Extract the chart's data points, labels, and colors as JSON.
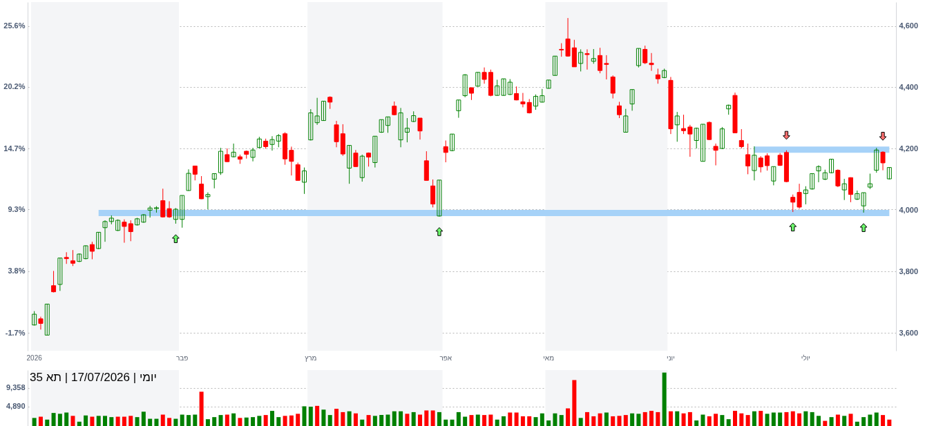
{
  "chart_data": [
    {
      "type": "candlestick",
      "categories": [
        "2026",
        null,
        null,
        null,
        null,
        null,
        null,
        null,
        null,
        null,
        null,
        null,
        null,
        null,
        null,
        null,
        null,
        null,
        null,
        null,
        null,
        null,
        null,
        "פבר",
        null,
        null,
        null,
        null,
        null,
        null,
        null,
        null,
        null,
        null,
        null,
        null,
        null,
        null,
        null,
        null,
        null,
        null,
        null,
        "מרץ",
        null,
        null,
        null,
        null,
        null,
        null,
        null,
        null,
        null,
        null,
        null,
        null,
        null,
        null,
        null,
        null,
        null,
        null,
        null,
        null,
        "אפר",
        null,
        null,
        null,
        null,
        null,
        null,
        null,
        null,
        null,
        null,
        null,
        null,
        null,
        null,
        null,
        "מאי",
        null,
        null,
        null,
        null,
        null,
        null,
        null,
        null,
        null,
        null,
        null,
        null,
        null,
        null,
        null,
        null,
        null,
        null,
        "יוני",
        null,
        null,
        null,
        null,
        null,
        null,
        null,
        null,
        null,
        null,
        null,
        null,
        null,
        null,
        null,
        null,
        null,
        null,
        null,
        null,
        "יולי",
        null,
        null,
        null,
        null,
        null,
        null,
        null,
        null,
        null,
        null,
        null,
        null,
        null
      ],
      "ylim": [
        -3.29,
        27.74
      ],
      "yticks": [
        {
          "value": -1.7,
          "label": "-1.7%"
        },
        {
          "value": 3.8,
          "label": "3.8%"
        },
        {
          "value": 9.3,
          "label": "9.3%"
        },
        {
          "value": 14.7,
          "label": "14.7%"
        },
        {
          "value": 20.2,
          "label": "20.2%"
        },
        {
          "value": 25.6,
          "label": "25.6%"
        }
      ],
      "y2lim": [
        3542,
        4678
      ],
      "y2ticks": [
        {
          "value": 3600,
          "label": "3,600"
        },
        {
          "value": 3800,
          "label": "3,800"
        },
        {
          "value": 4000,
          "label": "4,000"
        },
        {
          "value": 4200,
          "label": "4,200"
        },
        {
          "value": 4400,
          "label": "4,400"
        },
        {
          "value": 4600,
          "label": "4,600"
        }
      ],
      "grid": "y",
      "bands": [
        {
          "axis": "x",
          "from": "2026",
          "to": "פבר",
          "color": "#f4f5f7"
        },
        {
          "axis": "x",
          "from": "מרץ",
          "to": "אפר",
          "color": "#f4f5f7"
        },
        {
          "axis": "x",
          "from": "מאי",
          "to": "יוני",
          "color": "#f4f5f7"
        }
      ],
      "series": [
        {
          "type": "line",
          "axis": "y2",
          "color": "#a6d2f8",
          "values": [
            null,
            null,
            null,
            null,
            null,
            null,
            null,
            null,
            null,
            null,
            3991,
            3991,
            3991,
            3991,
            3991,
            3991,
            3991,
            3991,
            3991,
            3991,
            3991,
            3991,
            3991,
            3991,
            3991,
            3991,
            3991,
            3991,
            3991,
            3991,
            3991,
            3991,
            3991,
            3991,
            3991,
            3991,
            3991,
            3991,
            3991,
            3991,
            3991,
            3991,
            3991,
            3991,
            3991,
            3991,
            3991,
            3991,
            3991,
            3991,
            3991,
            3991,
            3991,
            3991,
            3991,
            3991,
            3991,
            3991,
            3991,
            3991,
            3991,
            3991,
            3991,
            3991,
            3991,
            3991,
            3991,
            3991,
            3991,
            3991,
            3991,
            3991,
            3991,
            3991,
            3991,
            3991,
            3991,
            3991,
            3991,
            3991,
            3991,
            3991,
            3991,
            3991,
            3991,
            3991,
            3991,
            3991,
            3991,
            3991,
            3991,
            3991,
            3991,
            3991,
            3991,
            3991,
            3991,
            3991,
            3991,
            3991,
            3991,
            3991,
            3991,
            3991,
            3991,
            3991,
            3991,
            3991,
            3991,
            3991,
            3991,
            3991,
            3991,
            3991,
            3991,
            3991,
            3991,
            3991,
            3991,
            3991,
            3991,
            3991,
            3991,
            3991,
            3991,
            3991,
            3991,
            3991,
            3991,
            3991,
            3991,
            3991,
            3991,
            3991
          ]
        },
        {
          "type": "line",
          "axis": "y2",
          "color": "#a6d2f8",
          "values": [
            null,
            null,
            null,
            null,
            null,
            null,
            null,
            null,
            null,
            null,
            null,
            null,
            null,
            null,
            null,
            null,
            null,
            null,
            null,
            null,
            null,
            null,
            null,
            null,
            null,
            null,
            null,
            null,
            null,
            null,
            null,
            null,
            null,
            null,
            null,
            null,
            null,
            null,
            null,
            null,
            null,
            null,
            null,
            null,
            null,
            null,
            null,
            null,
            null,
            null,
            null,
            null,
            null,
            null,
            null,
            null,
            null,
            null,
            null,
            null,
            null,
            null,
            null,
            null,
            null,
            null,
            null,
            null,
            null,
            null,
            null,
            null,
            null,
            null,
            null,
            null,
            null,
            null,
            null,
            null,
            null,
            null,
            null,
            null,
            null,
            null,
            null,
            null,
            null,
            null,
            null,
            null,
            null,
            null,
            null,
            null,
            null,
            null,
            null,
            null,
            null,
            null,
            null,
            null,
            null,
            null,
            null,
            null,
            null,
            null,
            null,
            null,
            4197,
            4197,
            4197,
            4197,
            4197,
            4197,
            4197,
            4197,
            4197,
            4197,
            4197,
            4197,
            4197,
            4197,
            4197,
            4197,
            4197,
            4197,
            4197,
            4197,
            4197,
            4197
          ]
        },
        {
          "type": "candlestick",
          "axis": "y2",
          "ohlc": [
            [
              3626,
              3671,
              3624,
              3661
            ],
            [
              3646,
              3653,
              3611,
              3631
            ],
            [
              3593,
              3694,
              3593,
              3694
            ],
            [
              3754,
              3802,
              3732,
              3734
            ],
            [
              3758,
              3844,
              3737,
              3844
            ],
            [
              3846,
              3863,
              3825,
              3842
            ],
            [
              3835,
              3870,
              3818,
              3827
            ],
            [
              3833,
              3859,
              3831,
              3857
            ],
            [
              3842,
              3885,
              3840,
              3884
            ],
            [
              3888,
              3897,
              3840,
              3866
            ],
            [
              3875,
              3928,
              3873,
              3928
            ],
            [
              3943,
              3967,
              3897,
              3963
            ],
            [
              3963,
              3983,
              3954,
              3974
            ],
            [
              3934,
              3970,
              3932,
              3967
            ],
            [
              3961,
              3970,
              3894,
              3947
            ],
            [
              3956,
              3967,
              3899,
              3930
            ],
            [
              3952,
              3975,
              3950,
              3972
            ],
            [
              3961,
              3987,
              3959,
              3985
            ],
            [
              4000,
              4014,
              3976,
              4007
            ],
            [
              4005,
              4013,
              3992,
              4008
            ],
            [
              4031,
              4070,
              3976,
              3978
            ],
            [
              4005,
              4029,
              3975,
              3978
            ],
            [
              3970,
              4007,
              3956,
              4003
            ],
            [
              3970,
              4048,
              3943,
              4048
            ],
            [
              4064,
              4133,
              4063,
              4120
            ],
            [
              4144,
              4144,
              4097,
              4117
            ],
            [
              4085,
              4111,
              4036,
              4037
            ],
            [
              4044,
              4058,
              4003,
              4051
            ],
            [
              4101,
              4119,
              4071,
              4119
            ],
            [
              4122,
              4203,
              4115,
              4192
            ],
            [
              4181,
              4201,
              4157,
              4158
            ],
            [
              4174,
              4217,
              4172,
              4189
            ],
            [
              4174,
              4181,
              4151,
              4166
            ],
            [
              4192,
              4194,
              4168,
              4182
            ],
            [
              4172,
              4203,
              4159,
              4196
            ],
            [
              4204,
              4239,
              4201,
              4232
            ],
            [
              4225,
              4233,
              4200,
              4207
            ],
            [
              4214,
              4241,
              4194,
              4230
            ],
            [
              4225,
              4248,
              4205,
              4243
            ],
            [
              4249,
              4254,
              4148,
              4167
            ],
            [
              4195,
              4207,
              4113,
              4159
            ],
            [
              4148,
              4155,
              4097,
              4097
            ],
            [
              4091,
              4139,
              4053,
              4128
            ],
            [
              4229,
              4329,
              4227,
              4317
            ],
            [
              4285,
              4366,
              4278,
              4307
            ],
            [
              4292,
              4355,
              4291,
              4355
            ],
            [
              4368,
              4371,
              4330,
              4352
            ],
            [
              4278,
              4291,
              4205,
              4223
            ],
            [
              4249,
              4280,
              4177,
              4183
            ],
            [
              4137,
              4212,
              4086,
              4211
            ],
            [
              4186,
              4196,
              4141,
              4142
            ],
            [
              4106,
              4181,
              4093,
              4176
            ],
            [
              4186,
              4188,
              4142,
              4173
            ],
            [
              4155,
              4241,
              4139,
              4241
            ],
            [
              4254,
              4295,
              4252,
              4295
            ],
            [
              4276,
              4304,
              4252,
              4304
            ],
            [
              4339,
              4354,
              4309,
              4311
            ],
            [
              4229,
              4333,
              4205,
              4317
            ],
            [
              4254,
              4300,
              4221,
              4267
            ],
            [
              4289,
              4322,
              4287,
              4308
            ],
            [
              4300,
              4300,
              4230,
              4258
            ],
            [
              4161,
              4192,
              4097,
              4097
            ],
            [
              4079,
              4100,
              4009,
              4020
            ],
            [
              3981,
              4098,
              3979,
              4098
            ],
            [
              4207,
              4227,
              4156,
              4188
            ],
            [
              4194,
              4248,
              4192,
              4248
            ],
            [
              4324,
              4359,
              4301,
              4359
            ],
            [
              4373,
              4443,
              4368,
              4441
            ],
            [
              4399,
              4399,
              4359,
              4381
            ],
            [
              4404,
              4449,
              4402,
              4449
            ],
            [
              4449,
              4465,
              4412,
              4426
            ],
            [
              4449,
              4458,
              4371,
              4374
            ],
            [
              4374,
              4425,
              4373,
              4405
            ],
            [
              4374,
              4428,
              4373,
              4428
            ],
            [
              4377,
              4427,
              4375,
              4417
            ],
            [
              4380,
              4403,
              4358,
              4359
            ],
            [
              4353,
              4382,
              4335,
              4346
            ],
            [
              4351,
              4362,
              4315,
              4317
            ],
            [
              4339,
              4377,
              4327,
              4371
            ],
            [
              4352,
              4395,
              4351,
              4373
            ],
            [
              4397,
              4424,
              4396,
              4424
            ],
            [
              4439,
              4502,
              4439,
              4502
            ],
            [
              4524,
              4544,
              4500,
              4522
            ],
            [
              4558,
              4626,
              4500,
              4502
            ],
            [
              4529,
              4555,
              4467,
              4467
            ],
            [
              4478,
              4524,
              4452,
              4514
            ],
            [
              4510,
              4524,
              4458,
              4507
            ],
            [
              4485,
              4525,
              4477,
              4494
            ],
            [
              4504,
              4529,
              4446,
              4455
            ],
            [
              4478,
              4505,
              4426,
              4475
            ],
            [
              4434,
              4439,
              4364,
              4381
            ],
            [
              4340,
              4353,
              4300,
              4311
            ],
            [
              4254,
              4330,
              4254,
              4307
            ],
            [
              4346,
              4393,
              4324,
              4393
            ],
            [
              4471,
              4527,
              4465,
              4527
            ],
            [
              4524,
              4536,
              4476,
              4480
            ],
            [
              4479,
              4512,
              4454,
              4474
            ],
            [
              4441,
              4461,
              4412,
              4428
            ],
            [
              4432,
              4461,
              4430,
              4455
            ],
            [
              4423,
              4434,
              4248,
              4265
            ],
            [
              4278,
              4320,
              4223,
              4307
            ],
            [
              4266,
              4311,
              4248,
              4259
            ],
            [
              4271,
              4278,
              4174,
              4248
            ],
            [
              4227,
              4269,
              4201,
              4267
            ],
            [
              4159,
              4280,
              4159,
              4280
            ],
            [
              4286,
              4289,
              4229,
              4230
            ],
            [
              4208,
              4217,
              4146,
              4195
            ],
            [
              4201,
              4271,
              4199,
              4265
            ],
            [
              4330,
              4344,
              4311,
              4342
            ],
            [
              4374,
              4383,
              4252,
              4252
            ],
            [
              4227,
              4264,
              4201,
              4207
            ],
            [
              4181,
              4217,
              4117,
              4144
            ],
            [
              4129,
              4208,
              4097,
              4179
            ],
            [
              4170,
              4176,
              4123,
              4141
            ],
            [
              4177,
              4185,
              4129,
              4145
            ],
            [
              4095,
              4142,
              4081,
              4142
            ],
            [
              4179,
              4186,
              4144,
              4146
            ],
            [
              4188,
              4195,
              4091,
              4093
            ],
            [
              4042,
              4051,
              3994,
              4026
            ],
            [
              4058,
              4086,
              4005,
              4010
            ],
            [
              4054,
              4078,
              4019,
              4066
            ],
            [
              4069,
              4119,
              4067,
              4119
            ],
            [
              4128,
              4146,
              4091,
              4142
            ],
            [
              4101,
              4132,
              4098,
              4122
            ],
            [
              4122,
              4167,
              4120,
              4166
            ],
            [
              4130,
              4133,
              4075,
              4079
            ],
            [
              4066,
              4102,
              4033,
              4086
            ],
            [
              4106,
              4107,
              4026,
              4051
            ],
            [
              4036,
              4064,
              4033,
              4054
            ],
            [
              4014,
              4057,
              3992,
              4057
            ],
            [
              4075,
              4119,
              4069,
              4086
            ],
            [
              4130,
              4203,
              4122,
              4196
            ],
            [
              4189,
              4192,
              4130,
              4154
            ],
            [
              4102,
              4139,
              4100,
              4139
            ]
          ],
          "colors": [
            "#008000",
            "#ff0000",
            "#008000",
            "#ff0000",
            "#008000",
            "#ff0000",
            "#ff0000",
            "#008000",
            "#008000",
            "#ff0000",
            "#008000",
            "#008000",
            "#008000",
            "#008000",
            "#ff0000",
            "#ff0000",
            "#008000",
            "#008000",
            "#008000",
            "#008000",
            "#ff0000",
            "#ff0000",
            "#008000",
            "#008000",
            "#008000",
            "#ff0000",
            "#ff0000",
            "#008000",
            "#008000",
            "#008000",
            "#ff0000",
            "#008000",
            "#ff0000",
            "#ff0000",
            "#008000",
            "#008000",
            "#ff0000",
            "#008000",
            "#008000",
            "#ff0000",
            "#ff0000",
            "#ff0000",
            "#008000",
            "#008000",
            "#008000",
            "#008000",
            "#ff0000",
            "#ff0000",
            "#ff0000",
            "#008000",
            "#ff0000",
            "#008000",
            "#ff0000",
            "#008000",
            "#008000",
            "#008000",
            "#ff0000",
            "#008000",
            "#008000",
            "#008000",
            "#ff0000",
            "#ff0000",
            "#ff0000",
            "#008000",
            "#ff0000",
            "#008000",
            "#008000",
            "#008000",
            "#ff0000",
            "#008000",
            "#ff0000",
            "#ff0000",
            "#008000",
            "#008000",
            "#008000",
            "#ff0000",
            "#ff0000",
            "#ff0000",
            "#008000",
            "#008000",
            "#008000",
            "#008000",
            "#ff0000",
            "#ff0000",
            "#ff0000",
            "#008000",
            "#ff0000",
            "#008000",
            "#ff0000",
            "#ff0000",
            "#ff0000",
            "#ff0000",
            "#008000",
            "#008000",
            "#008000",
            "#ff0000",
            "#ff0000",
            "#ff0000",
            "#008000",
            "#ff0000",
            "#008000",
            "#ff0000",
            "#ff0000",
            "#008000",
            "#008000",
            "#ff0000",
            "#ff0000",
            "#008000",
            "#008000",
            "#ff0000",
            "#ff0000",
            "#ff0000",
            "#008000",
            "#ff0000",
            "#ff0000",
            "#008000",
            "#ff0000",
            "#ff0000",
            "#ff0000",
            "#ff0000",
            "#008000",
            "#008000",
            "#008000",
            "#008000",
            "#008000",
            "#ff0000",
            "#008000",
            "#ff0000",
            "#008000",
            "#008000",
            "#008000",
            "#008000",
            "#ff0000",
            "#008000"
          ]
        }
      ]
    },
    {
      "type": "bar",
      "title": "יומי | 17/07/2026 | תא 35",
      "categories": [
        "2026",
        null,
        null,
        null,
        null,
        null,
        null,
        null,
        null,
        null,
        null,
        null,
        null,
        null,
        null,
        null,
        null,
        null,
        null,
        null,
        null,
        null,
        null,
        "פבר",
        null,
        null,
        null,
        null,
        null,
        null,
        null,
        null,
        null,
        null,
        null,
        null,
        null,
        null,
        null,
        null,
        null,
        null,
        null,
        "מרץ",
        null,
        null,
        null,
        null,
        null,
        null,
        null,
        null,
        null,
        null,
        null,
        null,
        null,
        null,
        null,
        null,
        null,
        null,
        null,
        null,
        "אפר",
        null,
        null,
        null,
        null,
        null,
        null,
        null,
        null,
        null,
        null,
        null,
        null,
        null,
        null,
        null,
        "מאי",
        null,
        null,
        null,
        null,
        null,
        null,
        null,
        null,
        null,
        null,
        null,
        null,
        null,
        null,
        null,
        null,
        null,
        null,
        "יוני",
        null,
        null,
        null,
        null,
        null,
        null,
        null,
        null,
        null,
        null,
        null,
        null,
        null,
        null,
        null,
        null,
        null,
        null,
        null,
        null,
        "יולי",
        null,
        null,
        null,
        null,
        null,
        null,
        null,
        null,
        null,
        null,
        null,
        null,
        null
      ],
      "tick_labels": "y",
      "ylim": [
        0,
        13600
      ],
      "yticks": [
        {
          "value": 4890,
          "label": "4,890"
        },
        {
          "value": 9358,
          "label": "9,358"
        }
      ],
      "grid": "y",
      "bands": [
        {
          "axis": "x",
          "from": "2026",
          "to": "פבר",
          "color": "#f4f5f7"
        },
        {
          "axis": "x",
          "from": "מרץ",
          "to": "אפר",
          "color": "#f4f5f7"
        },
        {
          "axis": "x",
          "from": "מאי",
          "to": "יוני",
          "color": "#f4f5f7"
        }
      ],
      "values": [
        2100,
        2400,
        1700,
        3300,
        3100,
        3400,
        2600,
        1200,
        2700,
        2400,
        2600,
        2600,
        2300,
        2400,
        2400,
        2600,
        2300,
        3600,
        1900,
        1900,
        2900,
        2100,
        1900,
        2900,
        2800,
        2900,
        8400,
        1800,
        2300,
        2800,
        2900,
        3200,
        2100,
        2200,
        2300,
        2600,
        2800,
        3800,
        2300,
        2600,
        2700,
        3100,
        4900,
        4800,
        5000,
        4100,
        2800,
        4300,
        3500,
        3700,
        3200,
        1700,
        2800,
        2600,
        2800,
        2900,
        3700,
        3700,
        3100,
        3500,
        2900,
        3900,
        3900,
        3500,
        1700,
        1700,
        3500,
        2400,
        2800,
        2900,
        2800,
        2900,
        1700,
        2500,
        3400,
        3400,
        2500,
        2500,
        2300,
        3200,
        1500,
        3200,
        2800,
        4400,
        11200,
        2100,
        3500,
        2500,
        3200,
        3400,
        2500,
        2600,
        2800,
        3200,
        3100,
        3500,
        3800,
        3500,
        13000,
        3700,
        3700,
        3200,
        3500,
        1500,
        2900,
        2500,
        3100,
        2800,
        1800,
        3800,
        3200,
        2800,
        3700,
        3800,
        3100,
        3400,
        3400,
        3500,
        3700,
        3200,
        3700,
        3500,
        2600,
        1400,
        2300,
        2900,
        2600,
        3100,
        1200,
        2300,
        2900,
        3400,
        2800,
        1700
      ],
      "colors": [
        "#008000",
        "#ff0000",
        "#008000",
        "#008000",
        "#008000",
        "#008000",
        "#ff0000",
        "#008000",
        "#008000",
        "#ff0000",
        "#008000",
        "#008000",
        "#008000",
        "#ff0000",
        "#ff0000",
        "#ff0000",
        "#008000",
        "#008000",
        "#008000",
        "#008000",
        "#ff0000",
        "#ff0000",
        "#008000",
        "#008000",
        "#008000",
        "#008000",
        "#ff0000",
        "#008000",
        "#008000",
        "#008000",
        "#ff0000",
        "#008000",
        "#ff0000",
        "#008000",
        "#008000",
        "#008000",
        "#ff0000",
        "#008000",
        "#008000",
        "#ff0000",
        "#ff0000",
        "#ff0000",
        "#008000",
        "#008000",
        "#ff0000",
        "#008000",
        "#008000",
        "#ff0000",
        "#ff0000",
        "#008000",
        "#ff0000",
        "#008000",
        "#ff0000",
        "#008000",
        "#008000",
        "#008000",
        "#008000",
        "#008000",
        "#ff0000",
        "#008000",
        "#ff0000",
        "#ff0000",
        "#ff0000",
        "#008000",
        "#008000",
        "#008000",
        "#008000",
        "#008000",
        "#ff0000",
        "#008000",
        "#ff0000",
        "#ff0000",
        "#008000",
        "#008000",
        "#ff0000",
        "#ff0000",
        "#ff0000",
        "#ff0000",
        "#008000",
        "#008000",
        "#008000",
        "#008000",
        "#008000",
        "#ff0000",
        "#ff0000",
        "#008000",
        "#ff0000",
        "#ff0000",
        "#ff0000",
        "#008000",
        "#ff0000",
        "#ff0000",
        "#ff0000",
        "#008000",
        "#008000",
        "#ff0000",
        "#ff0000",
        "#ff0000",
        "#008000",
        "#ff0000",
        "#008000",
        "#ff0000",
        "#ff0000",
        "#008000",
        "#008000",
        "#ff0000",
        "#ff0000",
        "#008000",
        "#008000",
        "#ff0000",
        "#ff0000",
        "#ff0000",
        "#008000",
        "#ff0000",
        "#008000",
        "#008000",
        "#008000",
        "#ff0000",
        "#ff0000",
        "#ff0000",
        "#008000",
        "#008000",
        "#008000",
        "#ff0000",
        "#008000",
        "#ff0000",
        "#008000",
        "#ff0000",
        "#008000",
        "#008000",
        "#008000",
        "#008000",
        "#ff0000",
        "#ff0000"
      ]
    }
  ]
}
